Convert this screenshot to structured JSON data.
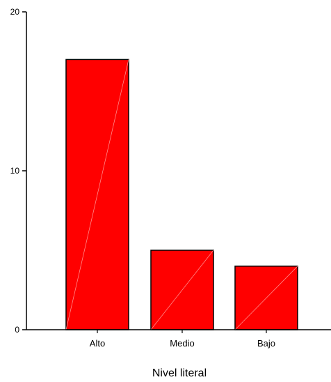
{
  "chart_data": {
    "type": "bar",
    "title": "",
    "xlabel": "Nivel literal",
    "ylabel": "",
    "categories": [
      "Alto",
      "Medio",
      "Bajo"
    ],
    "values": [
      17,
      5,
      4
    ],
    "ylim": [
      0,
      20
    ],
    "yticks": [
      "0",
      "10",
      "20"
    ],
    "grid": false,
    "legend": "none",
    "bar_color": "#ff0000",
    "bar_edge_color": "#000000"
  }
}
